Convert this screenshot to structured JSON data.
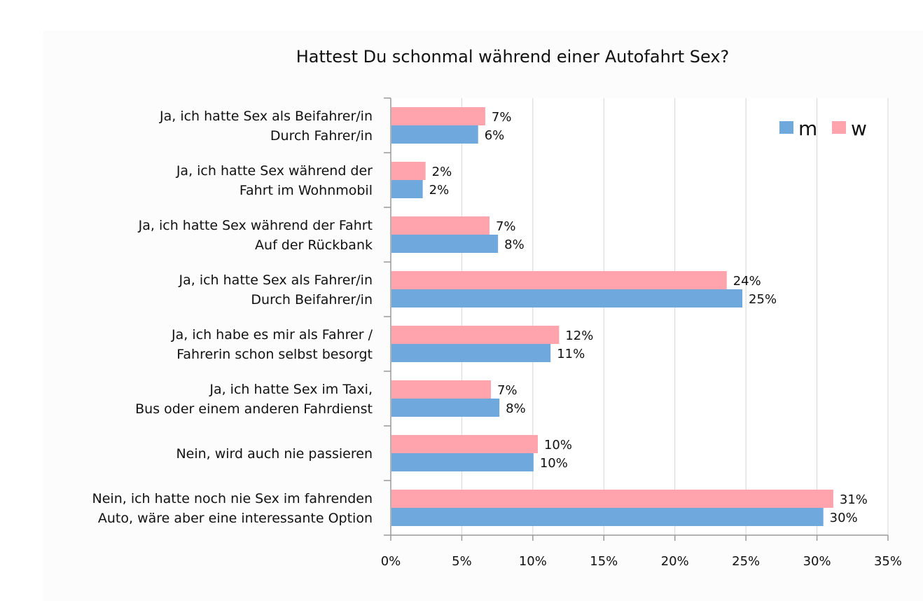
{
  "chart_data": {
    "type": "bar",
    "orientation": "horizontal",
    "title": "Hattest Du schonmal während einer Autofahrt Sex?",
    "xlabel": "",
    "ylabel": "",
    "xlim": [
      0,
      35
    ],
    "xticks": [
      0,
      5,
      10,
      15,
      20,
      25,
      30,
      35
    ],
    "tick_suffix": "%",
    "grid": "vertical",
    "legend_position": "top-right",
    "categories": [
      [
        "Ja, ich hatte Sex als Beifahrer/in",
        "Durch Fahrer/in"
      ],
      [
        "Ja, ich hatte Sex während der",
        "Fahrt im Wohnmobil"
      ],
      [
        "Ja, ich hatte Sex während der Fahrt",
        "Auf der Rückbank"
      ],
      [
        "Ja, ich hatte Sex als Fahrer/in",
        "Durch Beifahrer/in"
      ],
      [
        "Ja, ich habe es mir als Fahrer /",
        "Fahrerin schon selbst besorgt"
      ],
      [
        "Ja, ich hatte Sex im Taxi,",
        "Bus oder einem anderen Fahrdienst"
      ],
      [
        "Nein, wird auch nie passieren"
      ],
      [
        "Nein, ich hatte noch nie Sex im fahrenden",
        "Auto, wäre aber eine interessante Option"
      ]
    ],
    "series": [
      {
        "name": "w",
        "color": "#ffa3ac",
        "values": [
          6.6,
          2.4,
          6.9,
          23.6,
          11.8,
          7.0,
          10.3,
          31.1
        ],
        "labels": [
          "7%",
          "2%",
          "7%",
          "24%",
          "12%",
          "7%",
          "10%",
          "31%"
        ]
      },
      {
        "name": "m",
        "color": "#6fa8dc",
        "values": [
          6.1,
          2.2,
          7.5,
          24.7,
          11.2,
          7.6,
          10.0,
          30.4
        ],
        "labels": [
          "6%",
          "2%",
          "8%",
          "25%",
          "11%",
          "8%",
          "10%",
          "30%"
        ]
      }
    ],
    "legend_order": [
      "m",
      "w"
    ]
  }
}
